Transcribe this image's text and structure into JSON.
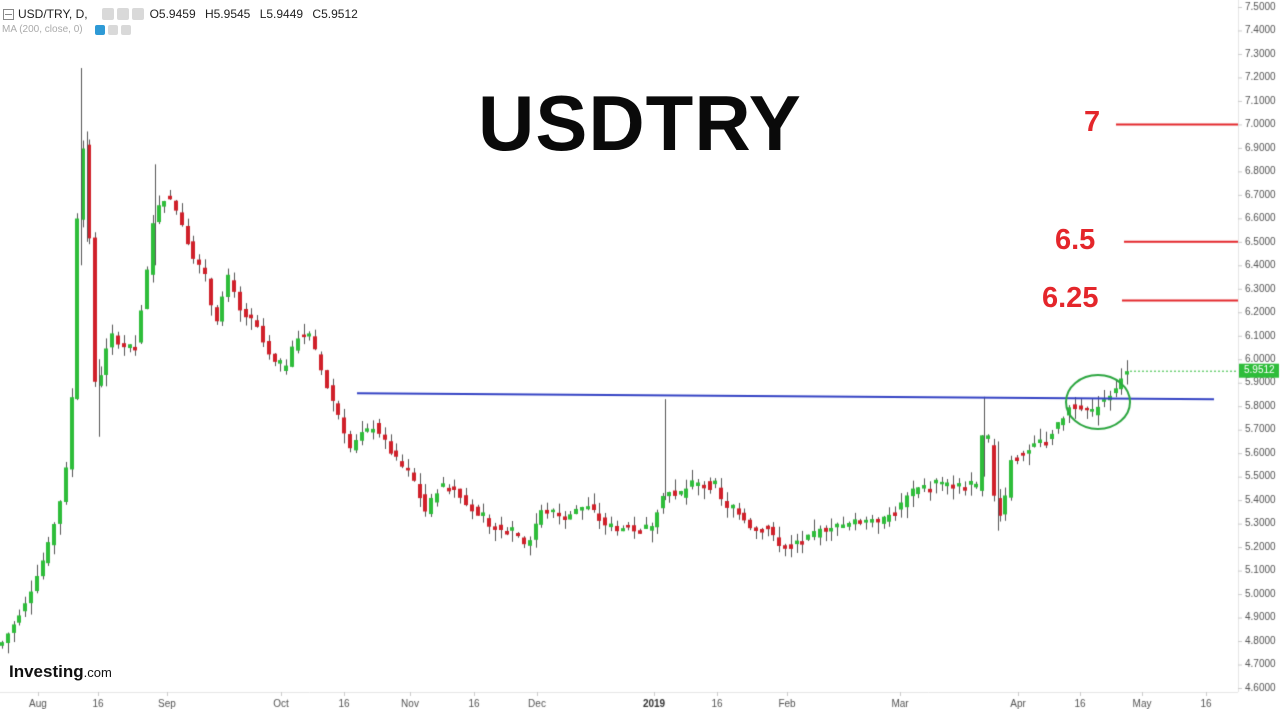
{
  "header": {
    "symbol": "USD/TRY, D,",
    "open": "O5.9459",
    "high": "H5.9545",
    "low": "L5.9449",
    "close": "C5.9512",
    "indicator": "MA (200, close, 0)"
  },
  "title": "USDTRY",
  "levels": [
    {
      "label": "7",
      "value": 7.0
    },
    {
      "label": "6.5",
      "value": 6.5
    },
    {
      "label": "6.25",
      "value": 6.25
    }
  ],
  "logo": {
    "name": "Investing",
    "suffix": ".com"
  },
  "colors": {
    "up": "#2ebd3a",
    "down": "#d0202a",
    "level": "#e4262b",
    "trendline": "#3342c4",
    "circle": "#2ca640",
    "price_tag": "#2ebd3a"
  },
  "chart_data": {
    "type": "candlestick",
    "ylim": [
      4.6,
      7.5
    ],
    "y_ticks": [
      "4.6000",
      "4.7000",
      "4.8000",
      "4.9000",
      "5.0000",
      "5.1000",
      "5.2000",
      "5.3000",
      "5.4000",
      "5.5000",
      "5.6000",
      "5.7000",
      "5.8000",
      "5.9000",
      "6.0000",
      "6.1000",
      "6.2000",
      "6.3000",
      "6.4000",
      "6.5000",
      "6.6000",
      "6.7000",
      "6.8000",
      "6.9000",
      "7.0000",
      "7.1000",
      "7.2000",
      "7.3000",
      "7.4000",
      "7.5000"
    ],
    "x_ticks": [
      "Aug",
      "16",
      "Sep",
      "Oct",
      "16",
      "Nov",
      "16",
      "Dec",
      "2019",
      "16",
      "Feb",
      "Mar",
      "Apr",
      "16",
      "May",
      "16"
    ],
    "last_price_label": "5.9512",
    "trendline": {
      "start": 5.855,
      "end": 5.83
    },
    "anchors": [
      [
        0,
        4.78
      ],
      [
        12,
        4.86
      ],
      [
        24,
        4.96
      ],
      [
        36,
        5.07
      ],
      [
        48,
        5.2
      ],
      [
        60,
        5.4
      ],
      [
        70,
        5.62
      ],
      [
        76,
        6.45
      ],
      [
        80,
        6.9
      ],
      [
        87,
        6.9
      ],
      [
        92,
        5.95
      ],
      [
        97,
        5.85
      ],
      [
        103,
        6.0
      ],
      [
        112,
        6.1
      ],
      [
        125,
        6.05
      ],
      [
        135,
        6.05
      ],
      [
        145,
        6.3
      ],
      [
        155,
        6.65
      ],
      [
        168,
        6.7
      ],
      [
        180,
        6.6
      ],
      [
        192,
        6.45
      ],
      [
        205,
        6.35
      ],
      [
        215,
        6.15
      ],
      [
        228,
        6.35
      ],
      [
        240,
        6.2
      ],
      [
        255,
        6.15
      ],
      [
        270,
        6.0
      ],
      [
        283,
        5.95
      ],
      [
        298,
        6.1
      ],
      [
        310,
        6.1
      ],
      [
        325,
        5.9
      ],
      [
        340,
        5.75
      ],
      [
        350,
        5.62
      ],
      [
        362,
        5.68
      ],
      [
        375,
        5.72
      ],
      [
        388,
        5.62
      ],
      [
        400,
        5.55
      ],
      [
        412,
        5.5
      ],
      [
        425,
        5.35
      ],
      [
        438,
        5.45
      ],
      [
        452,
        5.46
      ],
      [
        465,
        5.4
      ],
      [
        478,
        5.32
      ],
      [
        490,
        5.3
      ],
      [
        503,
        5.28
      ],
      [
        515,
        5.27
      ],
      [
        527,
        5.2
      ],
      [
        540,
        5.35
      ],
      [
        552,
        5.35
      ],
      [
        565,
        5.33
      ],
      [
        578,
        5.36
      ],
      [
        590,
        5.37
      ],
      [
        602,
        5.3
      ],
      [
        615,
        5.28
      ],
      [
        628,
        5.28
      ],
      [
        640,
        5.27
      ],
      [
        652,
        5.3
      ],
      [
        665,
        5.45
      ],
      [
        678,
        5.4
      ],
      [
        690,
        5.47
      ],
      [
        702,
        5.47
      ],
      [
        715,
        5.45
      ],
      [
        728,
        5.35
      ],
      [
        740,
        5.35
      ],
      [
        752,
        5.28
      ],
      [
        764,
        5.3
      ],
      [
        776,
        5.22
      ],
      [
        790,
        5.2
      ],
      [
        805,
        5.23
      ],
      [
        820,
        5.27
      ],
      [
        835,
        5.29
      ],
      [
        850,
        5.3
      ],
      [
        865,
        5.32
      ],
      [
        880,
        5.31
      ],
      [
        895,
        5.35
      ],
      [
        910,
        5.43
      ],
      [
        925,
        5.46
      ],
      [
        940,
        5.47
      ],
      [
        955,
        5.46
      ],
      [
        970,
        5.47
      ],
      [
        978,
        5.45
      ],
      [
        984,
        5.76
      ],
      [
        990,
        5.58
      ],
      [
        996,
        5.32
      ],
      [
        1004,
        5.38
      ],
      [
        1012,
        5.6
      ],
      [
        1020,
        5.58
      ],
      [
        1030,
        5.62
      ],
      [
        1045,
        5.66
      ],
      [
        1058,
        5.72
      ],
      [
        1070,
        5.8
      ],
      [
        1082,
        5.8
      ],
      [
        1090,
        5.76
      ],
      [
        1100,
        5.82
      ],
      [
        1112,
        5.86
      ],
      [
        1120,
        5.92
      ],
      [
        1128,
        5.95
      ]
    ]
  }
}
